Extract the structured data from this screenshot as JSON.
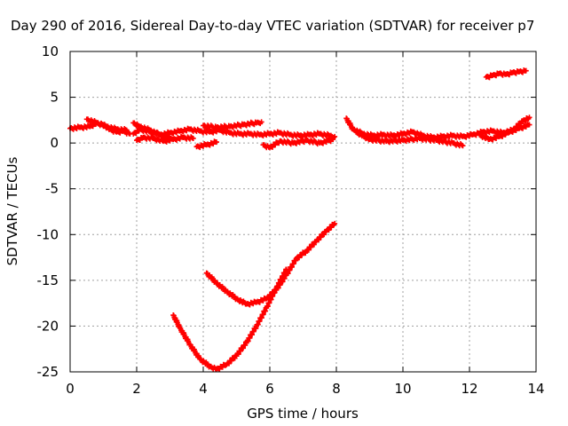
{
  "chart_data": {
    "type": "scatter",
    "title": "Day 290 of 2016, Sidereal Day-to-day VTEC variation (SDTVAR) for receiver p7",
    "xlabel": "GPS time / hours",
    "ylabel": "SDTVAR / TECUs",
    "xlim": [
      0,
      14
    ],
    "ylim": [
      -25,
      10
    ],
    "x_ticks": [
      0,
      2,
      4,
      6,
      8,
      10,
      12,
      14
    ],
    "y_ticks": [
      -25,
      -20,
      -15,
      -10,
      -5,
      0,
      5,
      10
    ],
    "grid": true,
    "legend": "none",
    "marker_color": "#ff0000",
    "series": [
      {
        "x": [
          0.0,
          0.3,
          0.6,
          0.8,
          1.0,
          1.2,
          1.4,
          1.6,
          1.8
        ],
        "y": [
          1.6,
          1.7,
          1.8,
          2.2,
          2.0,
          1.5,
          1.2,
          1.3,
          1.0
        ]
      },
      {
        "x": [
          0.5,
          0.8,
          1.1,
          1.4,
          1.7
        ],
        "y": [
          2.6,
          2.2,
          1.8,
          1.5,
          1.4
        ]
      },
      {
        "x": [
          1.9,
          2.1,
          2.4,
          2.7,
          3.0,
          3.3,
          3.6,
          3.9,
          4.2,
          4.5,
          4.8,
          5.1,
          5.4,
          5.7,
          6.0,
          6.3,
          6.6,
          6.9,
          7.2,
          7.5,
          7.8,
          7.95
        ],
        "y": [
          1.0,
          1.5,
          1.2,
          0.9,
          1.1,
          1.3,
          1.5,
          1.3,
          1.2,
          1.4,
          1.1,
          1.0,
          1.0,
          0.9,
          1.0,
          1.1,
          0.9,
          0.8,
          0.9,
          1.0,
          0.8,
          0.7
        ]
      },
      {
        "x": [
          1.9,
          2.1,
          2.4,
          2.7,
          3.0
        ],
        "y": [
          2.2,
          1.8,
          1.4,
          0.9,
          0.5
        ]
      },
      {
        "x": [
          2.0,
          2.2,
          2.5,
          2.8,
          3.1,
          3.4,
          3.7
        ],
        "y": [
          0.3,
          0.6,
          0.5,
          0.2,
          0.4,
          0.6,
          0.5
        ]
      },
      {
        "x": [
          4.0,
          4.4,
          4.8,
          5.2,
          5.6,
          5.75
        ],
        "y": [
          1.9,
          1.7,
          1.8,
          2.0,
          2.2,
          2.3
        ]
      },
      {
        "x": [
          3.8,
          4.1,
          4.4
        ],
        "y": [
          -0.4,
          -0.2,
          0.1
        ]
      },
      {
        "x": [
          5.8,
          6.0,
          6.3,
          6.7,
          7.1,
          7.5,
          7.9
        ],
        "y": [
          -0.2,
          -0.5,
          0.2,
          0.0,
          0.3,
          0.0,
          0.4
        ]
      },
      {
        "x": [
          3.1,
          3.3,
          3.6,
          3.9,
          4.2,
          4.4,
          4.7,
          5.0,
          5.3,
          5.6,
          5.9,
          6.2,
          6.5
        ],
        "y": [
          -18.8,
          -20.2,
          -22.0,
          -23.6,
          -24.4,
          -24.7,
          -24.2,
          -23.2,
          -21.8,
          -20.0,
          -18.0,
          -15.8,
          -13.8
        ]
      },
      {
        "x": [
          4.1,
          4.4,
          4.7,
          5.0,
          5.3,
          5.6,
          5.9,
          6.2,
          6.5,
          6.8,
          7.1,
          7.4,
          7.7,
          7.95
        ],
        "y": [
          -14.2,
          -15.3,
          -16.2,
          -17.0,
          -17.6,
          -17.4,
          -17.0,
          -16.0,
          -14.4,
          -12.6,
          -11.8,
          -10.7,
          -9.6,
          -8.8
        ]
      },
      {
        "x": [
          8.3,
          8.5,
          8.8,
          9.1,
          9.4,
          9.7,
          10.0,
          10.3,
          10.6,
          10.9,
          11.2,
          11.5,
          11.8,
          12.1,
          12.4,
          12.7,
          13.0,
          13.3,
          13.6,
          13.8
        ],
        "y": [
          2.7,
          1.5,
          1.0,
          0.8,
          0.9,
          0.8,
          1.0,
          1.2,
          0.8,
          0.6,
          0.7,
          0.8,
          0.7,
          0.9,
          1.2,
          1.3,
          1.1,
          1.4,
          2.4,
          2.8
        ]
      },
      {
        "x": [
          8.6,
          9.0,
          9.5,
          10.0,
          10.5,
          11.0,
          11.5,
          11.8
        ],
        "y": [
          1.2,
          0.4,
          0.2,
          0.3,
          0.5,
          0.3,
          0.0,
          -0.3
        ]
      },
      {
        "x": [
          12.3,
          12.6,
          12.9,
          13.2,
          13.5,
          13.8
        ],
        "y": [
          0.9,
          0.4,
          0.7,
          1.2,
          1.6,
          2.0
        ]
      },
      {
        "x": [
          12.5,
          12.7,
          12.9,
          13.1,
          13.3,
          13.5,
          13.7
        ],
        "y": [
          7.2,
          7.4,
          7.6,
          7.5,
          7.7,
          7.8,
          7.9
        ]
      }
    ]
  }
}
